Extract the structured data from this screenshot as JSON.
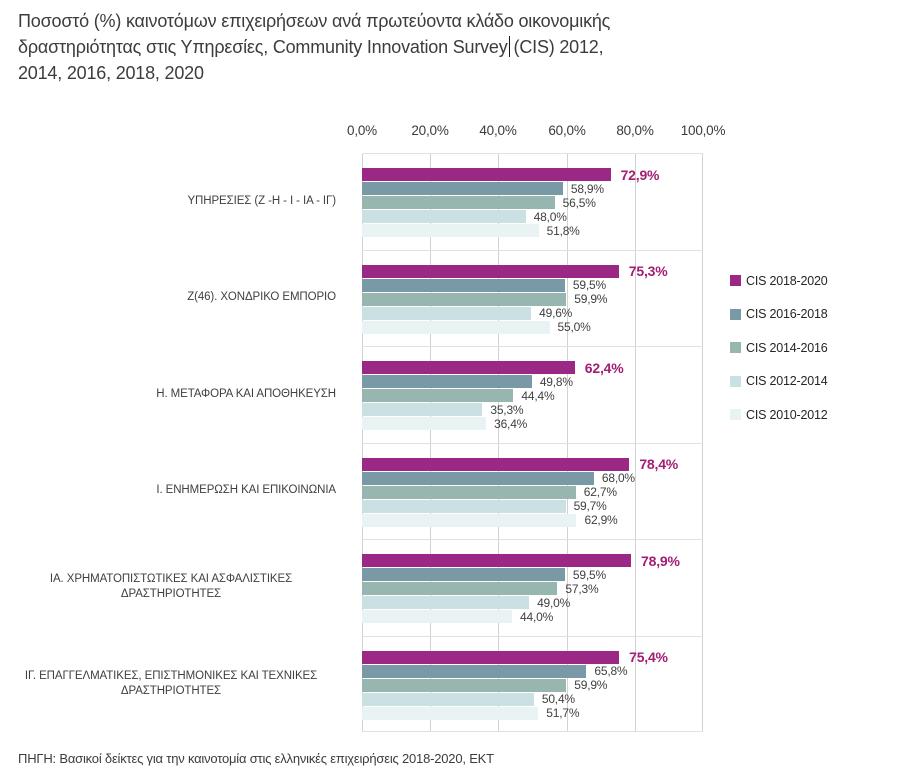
{
  "header": {
    "line1": "Ποσοστό (%) καινοτόμων επιχειρήσεων ανά πρωτεύοντα κλάδο οικονομικής",
    "line2_before": "δραστηριότητας στις Υπηρεσίες, Community Innovation Survey",
    "line2_after": "(CIS) 2012,",
    "line3": "2014, 2016, 2018, 2020"
  },
  "source_note": "ΠΗΓΗ: Βασικοί δείκτες για την καινοτομία στις ελληνικές επιχειρήσεις 2018-2020, ΕΚΤ",
  "chart_data": {
    "type": "bar",
    "orientation": "horizontal",
    "title": "Ποσοστό (%) καινοτόμων επιχειρήσεων ανά πρωτεύοντα κλάδο οικονομικής δραστηριότητας στις Υπηρεσίες, Community Innovation Survey (CIS) 2012, 2014, 2016, 2018, 2020",
    "xlabel": "",
    "ylabel": "",
    "xlim": [
      0,
      100
    ],
    "x_ticks": [
      "0,0%",
      "20,0%",
      "40,0%",
      "60,0%",
      "80,0%",
      "100,0%"
    ],
    "grid": "vertical major gridlines every 20%, horizontal category separators",
    "legend_position": "right",
    "series": [
      {
        "name": "CIS 2018-2020",
        "color": "#9a2884",
        "label_color": "#a21e74",
        "label_bold": true
      },
      {
        "name": "CIS 2016-2018",
        "color": "#7a99a7"
      },
      {
        "name": "CIS 2014-2016",
        "color": "#96b6af"
      },
      {
        "name": "CIS 2012-2014",
        "color": "#cbe0e2"
      },
      {
        "name": "CIS 2010-2012",
        "color": "#e9f3f4"
      }
    ],
    "categories": [
      {
        "label": [
          "ΥΠΗΡΕΣΙΕΣ (Ζ -Η - Ι - ΙΑ - ΙΓ)"
        ],
        "values": [
          72.9,
          58.9,
          56.5,
          48.0,
          51.8
        ],
        "labels": [
          "72,9%",
          "58,9%",
          "56,5%",
          "48,0%",
          "51,8%"
        ]
      },
      {
        "label": [
          "Ζ(46). ΧΟΝΔΡΙΚΟ ΕΜΠΟΡΙΟ"
        ],
        "values": [
          75.3,
          59.5,
          59.9,
          49.6,
          55.0
        ],
        "labels": [
          "75,3%",
          "59,5%",
          "59,9%",
          "49,6%",
          "55,0%"
        ]
      },
      {
        "label": [
          "Η. ΜΕΤΑΦΟΡΑ ΚΑΙ ΑΠΟΘΗΚΕΥΣΗ"
        ],
        "values": [
          62.4,
          49.8,
          44.4,
          35.3,
          36.4
        ],
        "labels": [
          "62,4%",
          "49,8%",
          "44,4%",
          "35,3%",
          "36,4%"
        ]
      },
      {
        "label": [
          "Ι. ΕΝΗΜΕΡΩΣΗ ΚΑΙ ΕΠΙΚΟΙΝΩΝΙΑ"
        ],
        "values": [
          78.4,
          68.0,
          62.7,
          59.7,
          62.9
        ],
        "labels": [
          "78,4%",
          "68,0%",
          "62,7%",
          "59,7%",
          "62,9%"
        ]
      },
      {
        "label": [
          "ΙΑ. ΧΡΗΜΑΤΟΠΙΣΤΩΤΙΚΕΣ ΚΑΙ ΑΣΦΑΛΙΣΤΙΚΕΣ",
          "ΔΡΑΣΤΗΡΙΟΤΗΤΕΣ"
        ],
        "values": [
          78.9,
          59.5,
          57.3,
          49.0,
          44.0
        ],
        "labels": [
          "78,9%",
          "59,5%",
          "57,3%",
          "49,0%",
          "44,0%"
        ]
      },
      {
        "label": [
          "ΙΓ. ΕΠΑΓΓΕΛΜΑΤΙΚΕΣ, ΕΠΙΣΤΗΜΟΝΙΚΕΣ ΚΑΙ ΤΕΧΝΙΚΕΣ",
          "ΔΡΑΣΤΗΡΙΟΤΗΤΕΣ"
        ],
        "values": [
          75.4,
          65.8,
          59.9,
          50.4,
          51.7
        ],
        "labels": [
          "75,4%",
          "65,8%",
          "59,9%",
          "50,4%",
          "51,7%"
        ]
      }
    ]
  }
}
